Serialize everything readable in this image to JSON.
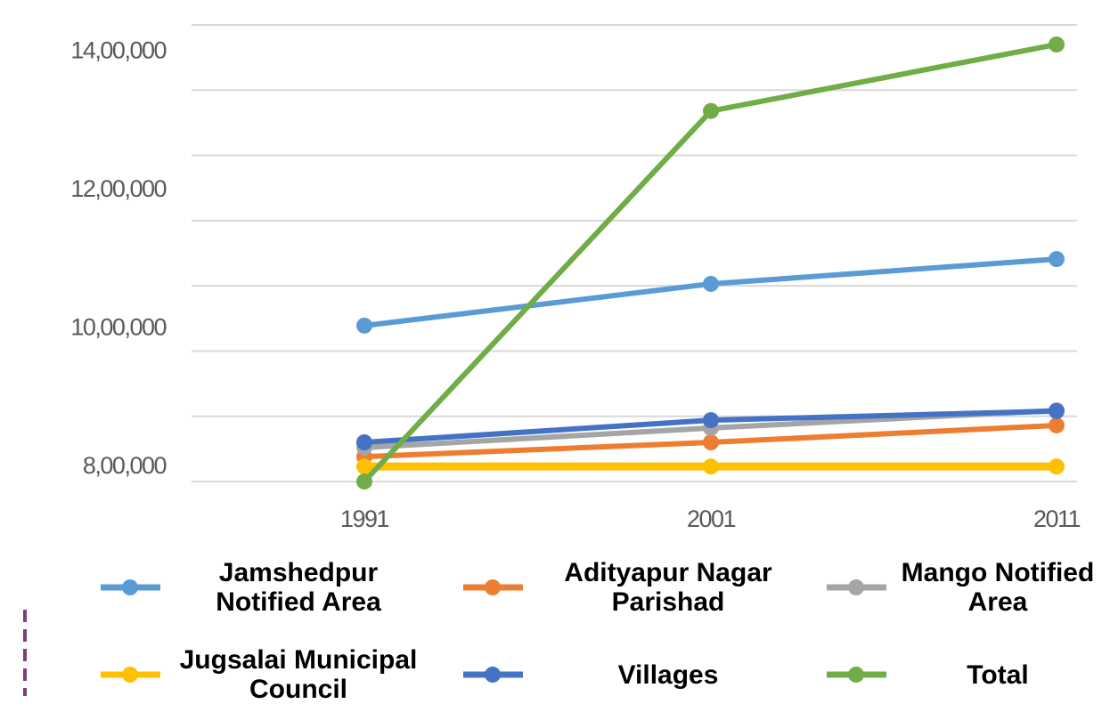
{
  "chart_data": {
    "type": "line",
    "categories": [
      "1991",
      "2001",
      "2011"
    ],
    "series": [
      {
        "name": "Jamshedpur Notified Area",
        "color": "#5b9bd5",
        "values": [
          1039000,
          1103000,
          1141000
        ]
      },
      {
        "name": "Adityapur Nagar Parishad",
        "color": "#ed7d31",
        "values": [
          838000,
          860000,
          886000
        ]
      },
      {
        "name": "Mango Notified Area",
        "color": "#a5a5a5",
        "values": [
          852000,
          882000,
          909000
        ]
      },
      {
        "name": "Jugsalai Municipal Council",
        "color": "#ffc000",
        "values": [
          823000,
          823000,
          823000
        ]
      },
      {
        "name": "Villages",
        "color": "#4472c4",
        "values": [
          860000,
          894000,
          908000
        ]
      },
      {
        "name": "Total",
        "color": "#70ad47",
        "values": [
          800000,
          1368000,
          1470000
        ]
      }
    ],
    "ylim": [
      800000,
      1500000
    ],
    "yticks": [
      {
        "value": 800000,
        "label": "8,00,000"
      },
      {
        "value": 1000000,
        "label": "10,00,000"
      },
      {
        "value": 1200000,
        "label": "12,00,000"
      },
      {
        "value": 1400000,
        "label": "14,00,000"
      }
    ],
    "minor_yticks": [
      900000,
      1100000,
      1300000,
      1500000
    ],
    "grid": true,
    "legend": "bottom"
  }
}
